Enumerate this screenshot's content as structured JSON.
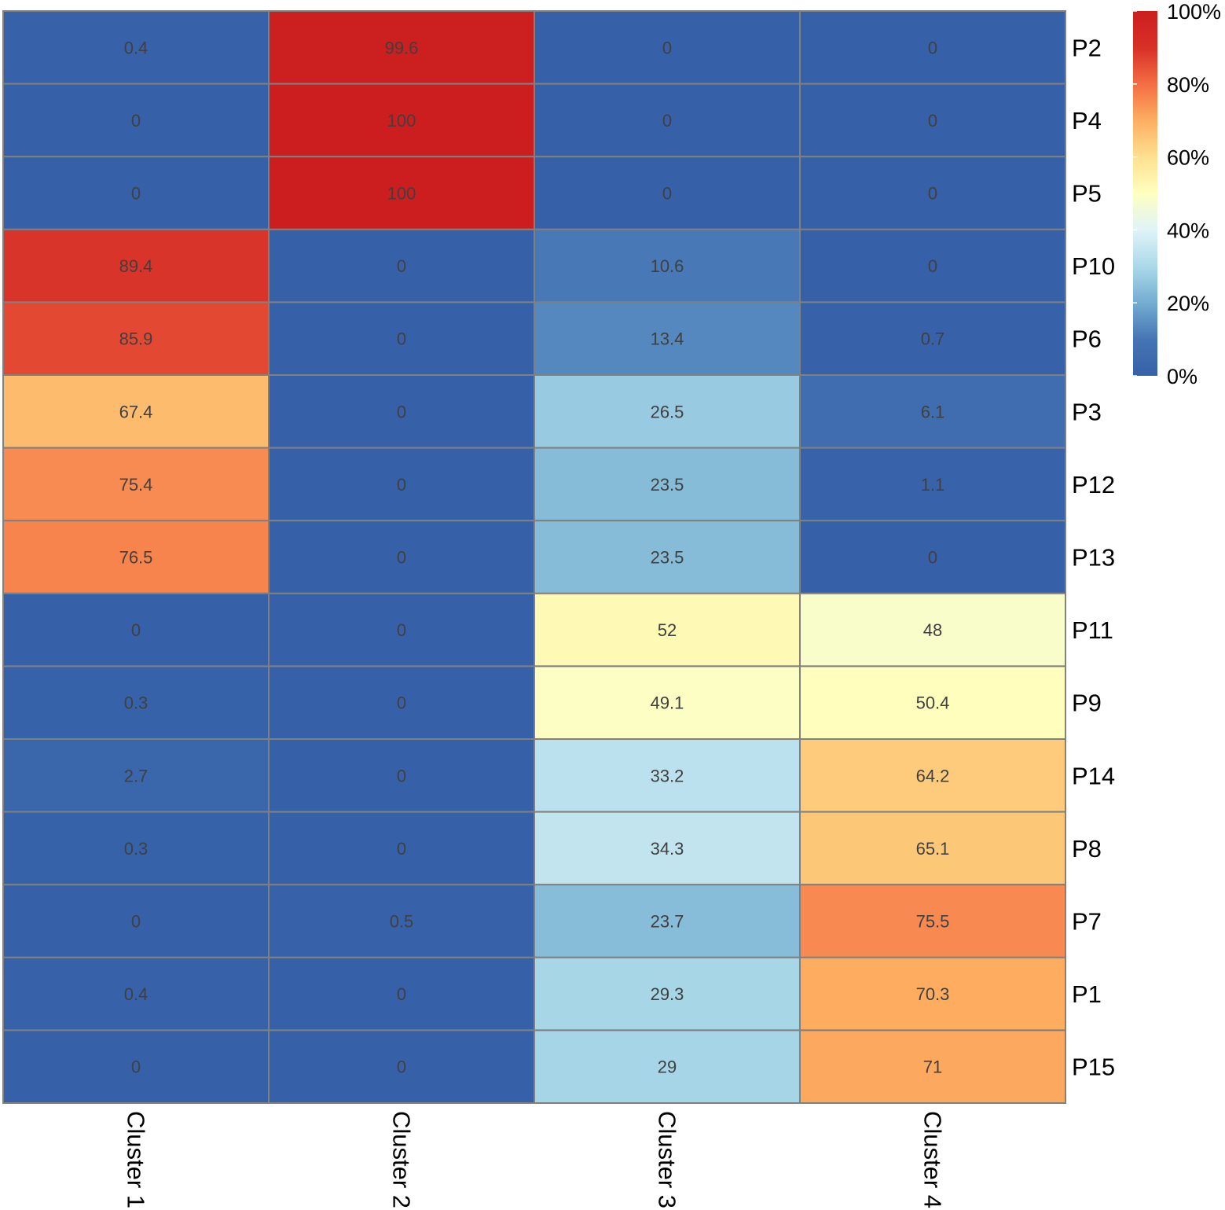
{
  "chart_data": {
    "type": "heatmap",
    "title": "",
    "xlabel": "",
    "ylabel": "",
    "columns": [
      "Cluster 1",
      "Cluster 2",
      "Cluster 3",
      "Cluster 4"
    ],
    "rows": [
      "P2",
      "P4",
      "P5",
      "P10",
      "P6",
      "P3",
      "P12",
      "P13",
      "P11",
      "P9",
      "P14",
      "P8",
      "P7",
      "P1",
      "P15"
    ],
    "values": [
      [
        0.4,
        99.6,
        0,
        0
      ],
      [
        0,
        100,
        0,
        0
      ],
      [
        0,
        100,
        0,
        0
      ],
      [
        89.4,
        0,
        10.6,
        0
      ],
      [
        85.9,
        0,
        13.4,
        0.7
      ],
      [
        67.4,
        0,
        26.5,
        6.1
      ],
      [
        75.4,
        0,
        23.5,
        1.1
      ],
      [
        76.5,
        0,
        23.5,
        0
      ],
      [
        0,
        0,
        52,
        48
      ],
      [
        0.3,
        0,
        49.1,
        50.4
      ],
      [
        2.7,
        0,
        33.2,
        64.2
      ],
      [
        0.3,
        0,
        34.3,
        65.1
      ],
      [
        0,
        0.5,
        23.7,
        75.5
      ],
      [
        0.4,
        0,
        29.3,
        70.3
      ],
      [
        0,
        0,
        29,
        71
      ]
    ],
    "value_labels": [
      [
        "0.4",
        "99.6",
        "0",
        "0"
      ],
      [
        "0",
        "100",
        "0",
        "0"
      ],
      [
        "0",
        "100",
        "0",
        "0"
      ],
      [
        "89.4",
        "0",
        "10.6",
        "0"
      ],
      [
        "85.9",
        "0",
        "13.4",
        "0.7"
      ],
      [
        "67.4",
        "0",
        "26.5",
        "6.1"
      ],
      [
        "75.4",
        "0",
        "23.5",
        "1.1"
      ],
      [
        "76.5",
        "0",
        "23.5",
        "0"
      ],
      [
        "0",
        "0",
        "52",
        "48"
      ],
      [
        "0.3",
        "0",
        "49.1",
        "50.4"
      ],
      [
        "2.7",
        "0",
        "33.2",
        "64.2"
      ],
      [
        "0.3",
        "0",
        "34.3",
        "65.1"
      ],
      [
        "0",
        "0.5",
        "23.7",
        "75.5"
      ],
      [
        "0.4",
        "0",
        "29.3",
        "70.3"
      ],
      [
        "0",
        "0",
        "29",
        "71"
      ]
    ],
    "value_range": [
      0,
      100
    ],
    "legend": {
      "position": "top-right",
      "ticks": [
        {
          "value": 0,
          "label": "0%"
        },
        {
          "value": 20,
          "label": "20%"
        },
        {
          "value": 40,
          "label": "40%"
        },
        {
          "value": 60,
          "label": "60%"
        },
        {
          "value": 80,
          "label": "80%"
        },
        {
          "value": 100,
          "label": "100%"
        }
      ]
    },
    "palette": [
      "#3661a9",
      "#4575b4",
      "#74add1",
      "#abd9e9",
      "#e0f3f8",
      "#ffffbf",
      "#fee090",
      "#fdae61",
      "#f46d43",
      "#d73027",
      "#cc1e1f"
    ],
    "grid_color": "#808080"
  }
}
